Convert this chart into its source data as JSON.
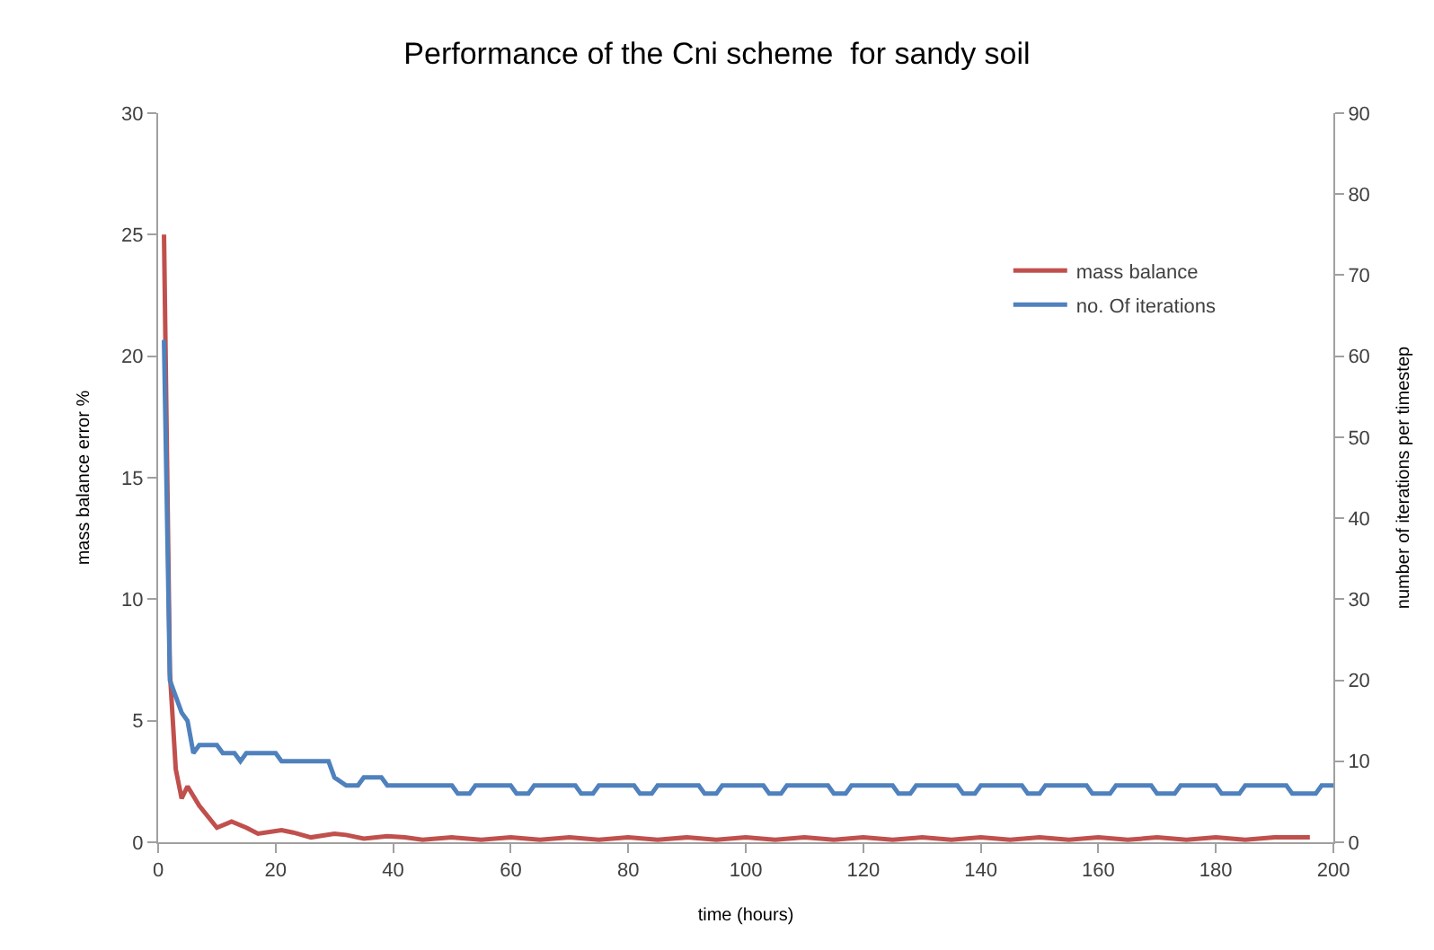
{
  "chart_data": {
    "type": "line",
    "title": "Performance of the Cni scheme  for sandy soil",
    "xlabel": "time (hours)",
    "ylabel": "mass balance error %",
    "y2label": "number of iterations per timestep",
    "xlim": [
      0,
      200
    ],
    "xticks": [
      0,
      20,
      40,
      60,
      80,
      100,
      120,
      140,
      160,
      180,
      200
    ],
    "ylim": [
      0,
      30
    ],
    "yticks": [
      0,
      5,
      10,
      15,
      20,
      25,
      30
    ],
    "y2lim": [
      0,
      90
    ],
    "y2ticks": [
      0,
      10,
      20,
      30,
      40,
      50,
      60,
      70,
      80,
      90
    ],
    "legend": "top right",
    "marker": "none",
    "line_style": "solid",
    "series": [
      {
        "name": "mass balance",
        "color": "#c0504d",
        "x": [
          1,
          2,
          3,
          4,
          5,
          7,
          10,
          12.5,
          15,
          17,
          21,
          23,
          26,
          30,
          32,
          35,
          39,
          42,
          45,
          50,
          55,
          60,
          65,
          70,
          75,
          80,
          85,
          90,
          95,
          100,
          105,
          110,
          115,
          120,
          125,
          130,
          135,
          140,
          145,
          150,
          155,
          160,
          165,
          170,
          175,
          180,
          185,
          190,
          196
        ],
        "values": [
          25,
          7,
          3,
          1.8,
          2.3,
          1.5,
          0.6,
          0.85,
          0.6,
          0.35,
          0.5,
          0.4,
          0.2,
          0.35,
          0.3,
          0.15,
          0.25,
          0.2,
          0.1,
          0.2,
          0.1,
          0.2,
          0.1,
          0.2,
          0.1,
          0.2,
          0.1,
          0.2,
          0.1,
          0.2,
          0.1,
          0.2,
          0.1,
          0.2,
          0.1,
          0.2,
          0.1,
          0.2,
          0.1,
          0.2,
          0.1,
          0.2,
          0.1,
          0.2,
          0.1,
          0.2,
          0.1,
          0.2,
          0.2
        ]
      },
      {
        "name": "no. Of iterations",
        "color": "#4f81bd",
        "axis": "y2",
        "x": [
          1,
          2,
          3,
          4,
          5,
          6,
          7,
          10,
          11,
          13,
          14,
          15,
          20,
          21,
          29,
          30,
          32,
          34,
          35,
          38,
          39,
          50,
          51,
          53,
          54,
          60,
          61,
          63,
          64,
          71,
          72,
          74,
          75,
          81,
          82,
          84,
          85,
          92,
          93,
          95,
          96,
          103,
          104,
          106,
          107,
          114,
          115,
          117,
          118,
          125,
          126,
          128,
          129,
          136,
          137,
          139,
          140,
          147,
          148,
          150,
          151,
          158,
          159,
          162,
          163,
          169,
          170,
          173,
          174,
          180,
          181,
          184,
          185,
          192,
          193,
          197,
          198,
          200
        ],
        "values": [
          62,
          20,
          18,
          16,
          15,
          11,
          12,
          12,
          11,
          11,
          10,
          11,
          11,
          10,
          10,
          8,
          7,
          7,
          8,
          8,
          7,
          7,
          6,
          6,
          7,
          7,
          6,
          6,
          7,
          7,
          6,
          6,
          7,
          7,
          6,
          6,
          7,
          7,
          6,
          6,
          7,
          7,
          6,
          6,
          7,
          7,
          6,
          6,
          7,
          7,
          6,
          6,
          7,
          7,
          6,
          6,
          7,
          7,
          6,
          6,
          7,
          7,
          6,
          6,
          7,
          7,
          6,
          6,
          7,
          7,
          6,
          6,
          7,
          7,
          6,
          6,
          7,
          7
        ]
      }
    ]
  }
}
